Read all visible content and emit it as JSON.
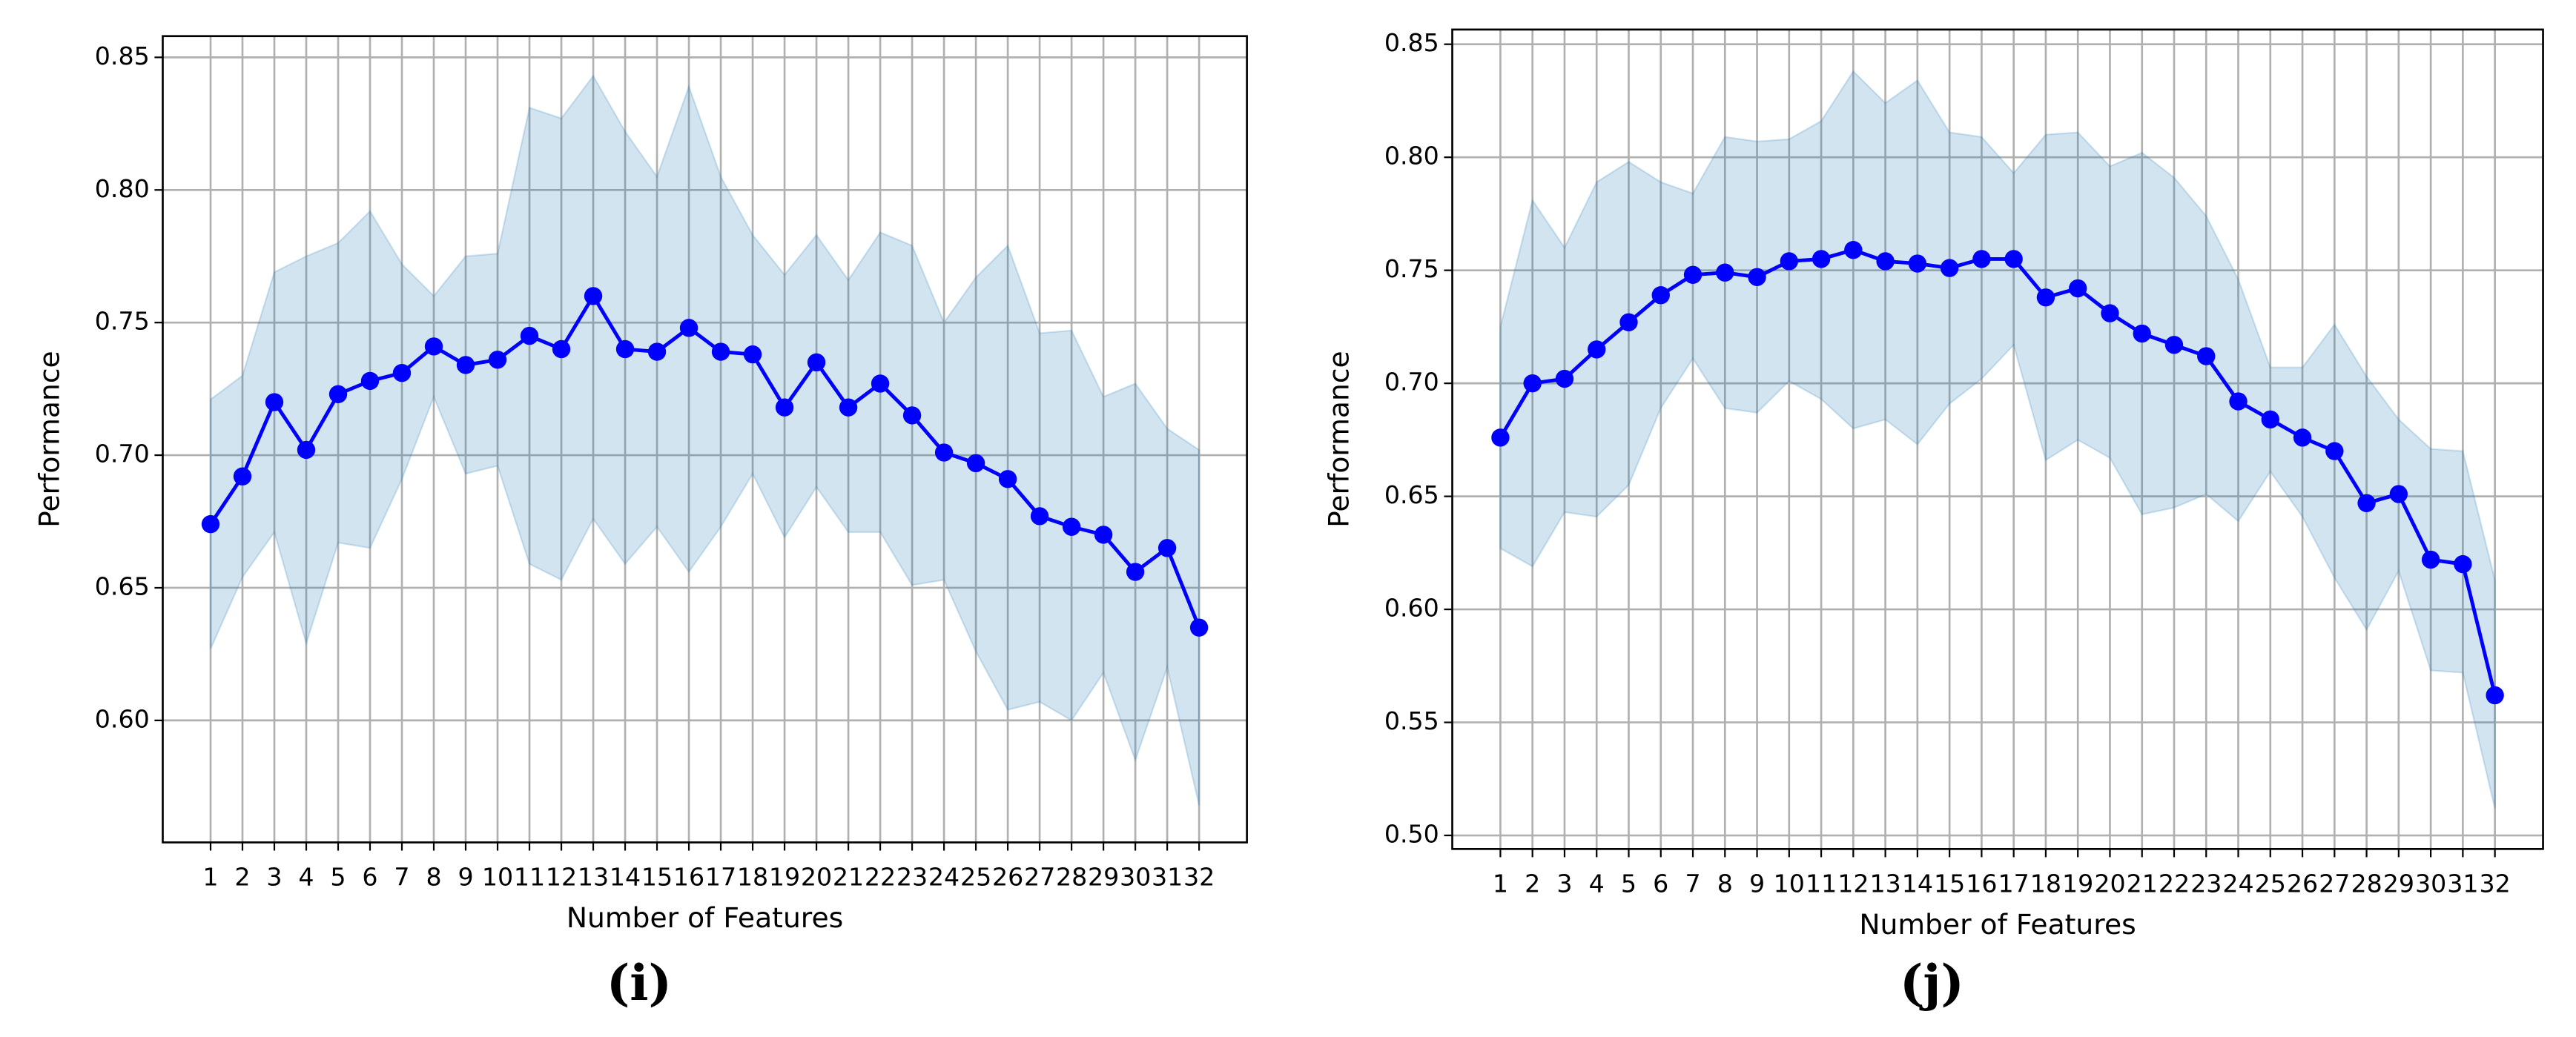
{
  "chart_data": [
    {
      "type": "line",
      "caption": "(i)",
      "xlabel": "Number of Features",
      "ylabel": "Performance",
      "x": [
        1,
        2,
        3,
        4,
        5,
        6,
        7,
        8,
        9,
        10,
        11,
        12,
        13,
        14,
        15,
        16,
        17,
        18,
        19,
        20,
        21,
        22,
        23,
        24,
        25,
        26,
        27,
        28,
        29,
        30,
        31,
        32
      ],
      "values": [
        0.674,
        0.692,
        0.72,
        0.702,
        0.723,
        0.728,
        0.731,
        0.741,
        0.734,
        0.736,
        0.745,
        0.74,
        0.76,
        0.74,
        0.739,
        0.748,
        0.739,
        0.738,
        0.718,
        0.735,
        0.718,
        0.727,
        0.715,
        0.701,
        0.697,
        0.691,
        0.677,
        0.673,
        0.67,
        0.656,
        0.665,
        0.635
      ],
      "upper": [
        0.721,
        0.73,
        0.769,
        0.775,
        0.78,
        0.792,
        0.772,
        0.76,
        0.775,
        0.776,
        0.831,
        0.827,
        0.843,
        0.822,
        0.805,
        0.839,
        0.805,
        0.783,
        0.768,
        0.783,
        0.766,
        0.784,
        0.779,
        0.75,
        0.767,
        0.779,
        0.746,
        0.747,
        0.722,
        0.727,
        0.71,
        0.702
      ],
      "lower": [
        0.627,
        0.654,
        0.671,
        0.629,
        0.667,
        0.665,
        0.691,
        0.722,
        0.693,
        0.696,
        0.659,
        0.653,
        0.676,
        0.659,
        0.673,
        0.656,
        0.673,
        0.693,
        0.669,
        0.688,
        0.671,
        0.671,
        0.651,
        0.653,
        0.626,
        0.604,
        0.607,
        0.6,
        0.618,
        0.585,
        0.62,
        0.568
      ],
      "color": "#0000ff",
      "band_color": "#1f77b4",
      "xlim": [
        -0.5,
        33.5
      ],
      "xticks": [
        1,
        2,
        3,
        4,
        5,
        6,
        7,
        8,
        9,
        10,
        11,
        12,
        13,
        14,
        15,
        16,
        17,
        18,
        19,
        20,
        21,
        22,
        23,
        24,
        25,
        26,
        27,
        28,
        29,
        30,
        31,
        32
      ],
      "ylim": [
        0.554,
        0.858
      ],
      "yticks": [
        {
          "value": 0.6,
          "label": "0.60"
        },
        0.65,
        {
          "value": 0.7,
          "label": "0.70"
        },
        0.75,
        {
          "value": 0.8,
          "label": "0.80"
        },
        0.85
      ],
      "grid": true
    },
    {
      "type": "line",
      "caption": "(j)",
      "xlabel": "Number of Features",
      "ylabel": "Performance",
      "x": [
        1,
        2,
        3,
        4,
        5,
        6,
        7,
        8,
        9,
        10,
        11,
        12,
        13,
        14,
        15,
        16,
        17,
        18,
        19,
        20,
        21,
        22,
        23,
        24,
        25,
        26,
        27,
        28,
        29,
        30,
        31,
        32
      ],
      "values": [
        0.676,
        0.7,
        0.702,
        0.715,
        0.727,
        0.739,
        0.748,
        0.749,
        0.747,
        0.754,
        0.755,
        0.759,
        0.754,
        0.753,
        0.751,
        0.755,
        0.755,
        0.738,
        0.742,
        0.731,
        0.722,
        0.717,
        0.712,
        0.692,
        0.684,
        0.676,
        0.67,
        0.647,
        0.651,
        0.622,
        0.62,
        0.562
      ],
      "upper": [
        0.725,
        0.781,
        0.76,
        0.789,
        0.798,
        0.789,
        0.784,
        0.809,
        0.807,
        0.808,
        0.816,
        0.838,
        0.824,
        0.834,
        0.811,
        0.809,
        0.793,
        0.81,
        0.811,
        0.796,
        0.802,
        0.791,
        0.774,
        0.746,
        0.707,
        0.707,
        0.726,
        0.703,
        0.684,
        0.671,
        0.67,
        0.613
      ],
      "lower": [
        0.627,
        0.619,
        0.643,
        0.641,
        0.655,
        0.689,
        0.711,
        0.689,
        0.687,
        0.701,
        0.693,
        0.68,
        0.684,
        0.673,
        0.691,
        0.702,
        0.717,
        0.666,
        0.675,
        0.667,
        0.642,
        0.645,
        0.651,
        0.639,
        0.661,
        0.641,
        0.614,
        0.591,
        0.617,
        0.573,
        0.572,
        0.512
      ],
      "color": "#0000ff",
      "band_color": "#1f77b4",
      "xlim": [
        -0.5,
        33.5
      ],
      "xticks": [
        1,
        2,
        3,
        4,
        5,
        6,
        7,
        8,
        9,
        10,
        11,
        12,
        13,
        14,
        15,
        16,
        17,
        18,
        19,
        20,
        21,
        22,
        23,
        24,
        25,
        26,
        27,
        28,
        29,
        30,
        31,
        32
      ],
      "ylim": [
        0.494,
        0.8565
      ],
      "yticks": [
        {
          "value": 0.5,
          "label": "0.50"
        },
        0.55,
        {
          "value": 0.6,
          "label": "0.60"
        },
        0.65,
        {
          "value": 0.7,
          "label": "0.70"
        },
        0.75,
        {
          "value": 0.8,
          "label": "0.80"
        },
        0.85
      ],
      "grid": true
    }
  ]
}
